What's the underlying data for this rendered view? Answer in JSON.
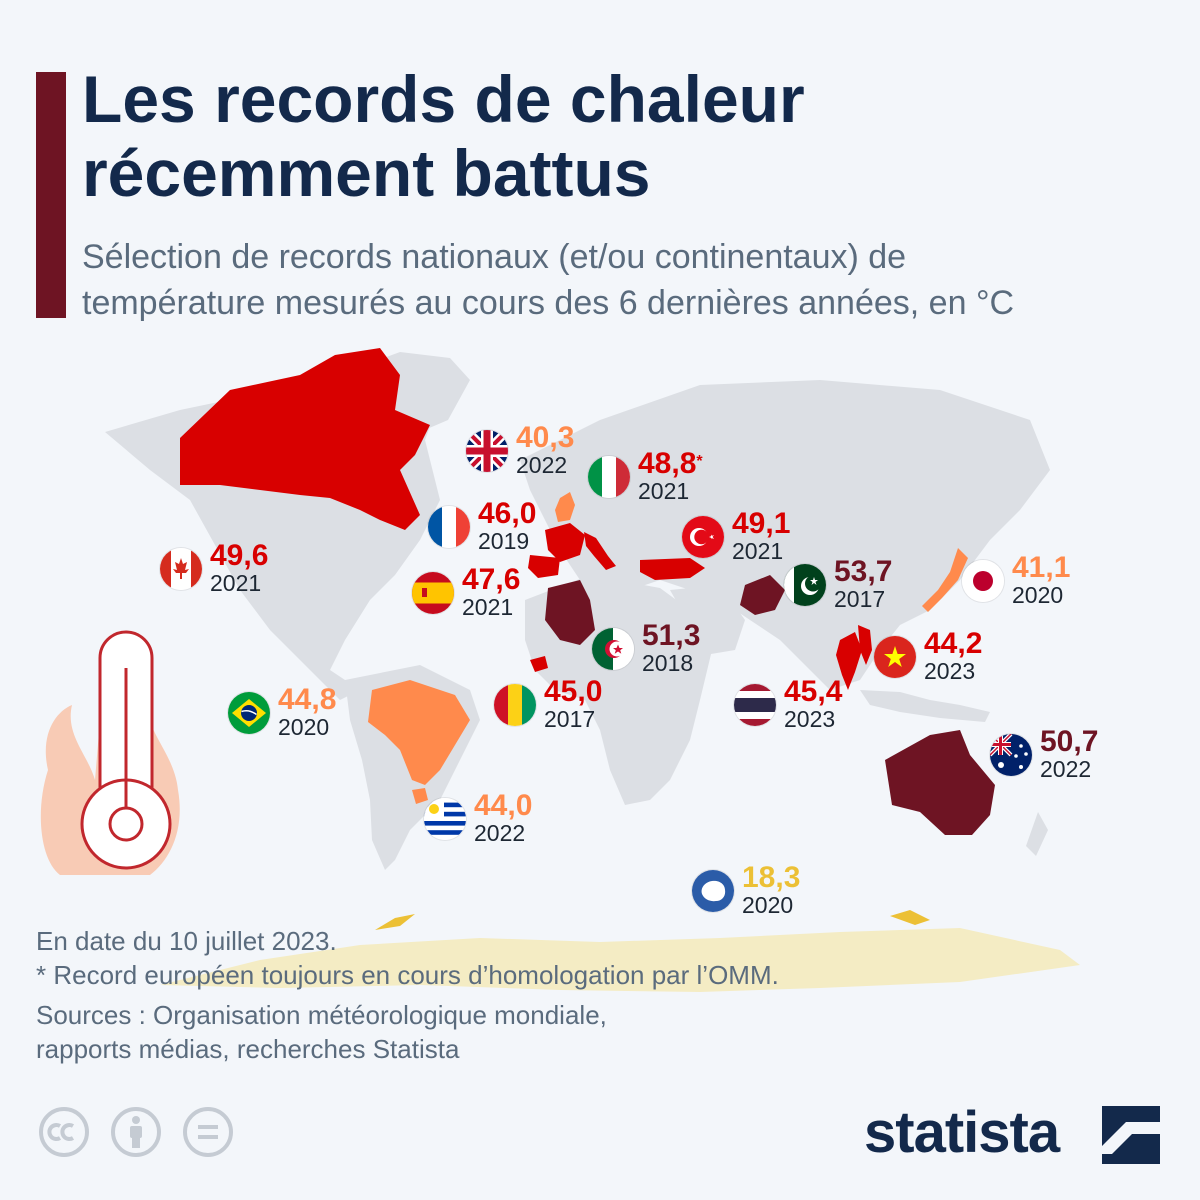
{
  "title": {
    "line1": "Les records de chaleur",
    "line2": "récemment battus"
  },
  "subtitle": {
    "line1": "Sélection de records nationaux (et/ou continentaux) de",
    "line2": "température mesurés au cours des 6 dernières années, en °C"
  },
  "colors": {
    "accent": "#6e1423",
    "title": "#13294b",
    "subtitle": "#5a6b7d",
    "land": "#dcdfe4",
    "red": "#d80000",
    "dark_red": "#6e1423",
    "orange": "#ff8a4c",
    "yellow": "#ecc035",
    "antarctica_fill": "#f4ecc4"
  },
  "records": [
    {
      "country": "United Kingdom",
      "flag": "flag-uk-icon",
      "value": "40,3",
      "year": "2022",
      "color": "orange"
    },
    {
      "country": "Italy",
      "flag": "flag-italy-icon",
      "value": "48,8",
      "marker": "*",
      "year": "2021",
      "color": "red"
    },
    {
      "country": "France",
      "flag": "flag-france-icon",
      "value": "46,0",
      "year": "2019",
      "color": "red"
    },
    {
      "country": "Turkey",
      "flag": "flag-turkey-icon",
      "value": "49,1",
      "year": "2021",
      "color": "red"
    },
    {
      "country": "Canada",
      "flag": "flag-canada-icon",
      "value": "49,6",
      "year": "2021",
      "color": "red"
    },
    {
      "country": "Spain",
      "flag": "flag-spain-icon",
      "value": "47,6",
      "year": "2021",
      "color": "red"
    },
    {
      "country": "Pakistan",
      "flag": "flag-pakistan-icon",
      "value": "53,7",
      "year": "2017",
      "color": "dark_red"
    },
    {
      "country": "Japan",
      "flag": "flag-japan-icon",
      "value": "41,1",
      "year": "2020",
      "color": "orange"
    },
    {
      "country": "Algeria",
      "flag": "flag-algeria-icon",
      "value": "51,3",
      "year": "2018",
      "color": "dark_red"
    },
    {
      "country": "Vietnam",
      "flag": "flag-vietnam-icon",
      "value": "44,2",
      "year": "2023",
      "color": "red"
    },
    {
      "country": "Brazil",
      "flag": "flag-brazil-icon",
      "value": "44,8",
      "year": "2020",
      "color": "orange"
    },
    {
      "country": "Guinea",
      "flag": "flag-guinea-icon",
      "value": "45,0",
      "year": "2017",
      "color": "red"
    },
    {
      "country": "Thailand",
      "flag": "flag-thailand-icon",
      "value": "45,4",
      "year": "2023",
      "color": "red"
    },
    {
      "country": "Australia",
      "flag": "flag-australia-icon",
      "value": "50,7",
      "year": "2022",
      "color": "dark_red"
    },
    {
      "country": "Uruguay",
      "flag": "flag-uruguay-icon",
      "value": "44,0",
      "year": "2022",
      "color": "orange"
    },
    {
      "country": "Antarctica",
      "flag": "flag-antarctica-icon",
      "value": "18,3",
      "year": "2020",
      "color": "yellow"
    }
  ],
  "notes": {
    "date": "En date du 10 juillet 2023.",
    "footnote": "* Record européen toujours en cours d’homologation par l’OMM.",
    "sources_line1": "Sources : Organisation météorologique mondiale,",
    "sources_line2": "rapports médias, recherches Statista"
  },
  "license_icons": [
    "cc-icon",
    "attribution-icon",
    "no-derivatives-icon"
  ],
  "brand": {
    "name": "statista"
  }
}
